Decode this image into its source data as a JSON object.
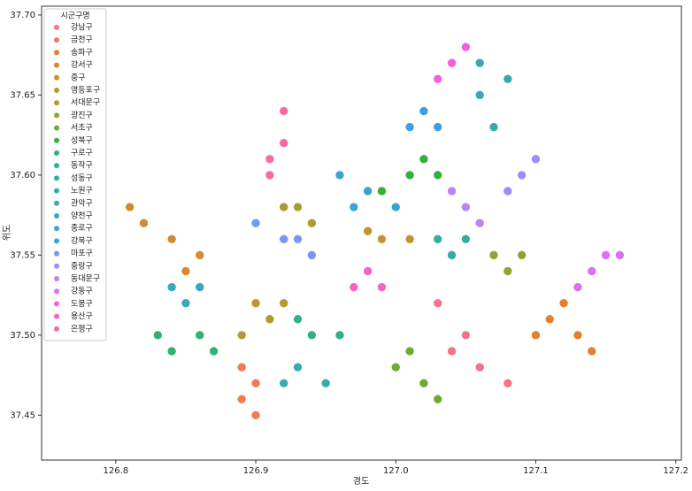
{
  "chart_data": {
    "type": "scatter",
    "x_label": "경도",
    "y_label": "위도",
    "legend_title": "시군구명",
    "legend": "upper left",
    "xlim": [
      126.747,
      127.204
    ],
    "ylim": [
      37.422,
      37.7055
    ],
    "xticks": [
      126.8,
      126.9,
      {
        "value": 127.0,
        "label": "127.0"
      },
      127.1,
      127.2
    ],
    "yticks": [
      37.45,
      {
        "value": 37.5,
        "label": "37.50"
      },
      37.55,
      {
        "value": 37.6,
        "label": "37.60"
      },
      37.65,
      {
        "value": 37.7,
        "label": "37.70"
      }
    ],
    "series": [
      {
        "name": "강남구",
        "color": "#f77189",
        "x": [
          127.03,
          127.05,
          127.06,
          127.08,
          127.04
        ],
        "y": [
          37.52,
          37.5,
          37.48,
          37.47,
          37.49
        ]
      },
      {
        "name": "금천구",
        "color": "#f47a56",
        "x": [
          126.9,
          126.89,
          126.9,
          126.89
        ],
        "y": [
          37.47,
          37.46,
          37.45,
          37.48
        ]
      },
      {
        "name": "송파구",
        "color": "#e3802f",
        "x": [
          127.11,
          127.13,
          127.14,
          127.1,
          127.12
        ],
        "y": [
          37.51,
          37.5,
          37.49,
          37.5,
          37.52
        ]
      },
      {
        "name": "강서구",
        "color": "#d48a32",
        "x": [
          126.82,
          126.84,
          126.85,
          126.81,
          126.86
        ],
        "y": [
          37.57,
          37.56,
          37.54,
          37.58,
          37.55
        ]
      },
      {
        "name": "중구",
        "color": "#c59233",
        "x": [
          126.99,
          127.01,
          126.98
        ],
        "y": [
          37.56,
          37.56,
          37.565
        ]
      },
      {
        "name": "영등포구",
        "color": "#b49a31",
        "x": [
          126.9,
          126.91,
          126.89,
          126.92
        ],
        "y": [
          37.52,
          37.51,
          37.5,
          37.52
        ]
      },
      {
        "name": "서대문구",
        "color": "#a39f31",
        "x": [
          126.93,
          126.94,
          126.92
        ],
        "y": [
          37.58,
          37.57,
          37.58
        ]
      },
      {
        "name": "광진구",
        "color": "#8ea631",
        "x": [
          127.08,
          127.09,
          127.07
        ],
        "y": [
          37.54,
          37.55,
          37.55
        ]
      },
      {
        "name": "서초구",
        "color": "#6aad32",
        "x": [
          127.01,
          127.02,
          127.0,
          127.03
        ],
        "y": [
          37.49,
          37.47,
          37.48,
          37.46
        ]
      },
      {
        "name": "성북구",
        "color": "#34b038",
        "x": [
          127.01,
          127.03,
          126.99,
          127.02
        ],
        "y": [
          37.6,
          37.6,
          37.59,
          37.61
        ]
      },
      {
        "name": "구로구",
        "color": "#33b074",
        "x": [
          126.84,
          126.86,
          126.87,
          126.83
        ],
        "y": [
          37.49,
          37.5,
          37.49,
          37.5
        ]
      },
      {
        "name": "동작구",
        "color": "#35ae8f",
        "x": [
          126.94,
          126.96,
          126.93
        ],
        "y": [
          37.5,
          37.5,
          37.51
        ]
      },
      {
        "name": "성동구",
        "color": "#36ad9c",
        "x": [
          127.04,
          127.03,
          127.05
        ],
        "y": [
          37.55,
          37.56,
          37.56
        ]
      },
      {
        "name": "노원구",
        "color": "#37aba9",
        "x": [
          127.06,
          127.07,
          127.08,
          127.06
        ],
        "y": [
          37.65,
          37.63,
          37.66,
          37.67
        ]
      },
      {
        "name": "관악구",
        "color": "#38a9b5",
        "x": [
          126.93,
          126.95,
          126.92
        ],
        "y": [
          37.48,
          37.47,
          37.47
        ]
      },
      {
        "name": "양천구",
        "color": "#39a7c2",
        "x": [
          126.85,
          126.86,
          126.84
        ],
        "y": [
          37.52,
          37.53,
          37.53
        ]
      },
      {
        "name": "종로구",
        "color": "#3ba3d0",
        "x": [
          126.98,
          126.97,
          127.0,
          126.96
        ],
        "y": [
          37.59,
          37.58,
          37.58,
          37.6
        ]
      },
      {
        "name": "강북구",
        "color": "#3e9fe3",
        "x": [
          127.02,
          127.01,
          127.03
        ],
        "y": [
          37.64,
          37.63,
          37.63
        ]
      },
      {
        "name": "마포구",
        "color": "#7a95f4",
        "x": [
          126.92,
          126.94,
          126.9,
          126.93
        ],
        "y": [
          37.56,
          37.55,
          37.57,
          37.56
        ]
      },
      {
        "name": "중랑구",
        "color": "#9d8df4",
        "x": [
          127.09,
          127.08,
          127.1
        ],
        "y": [
          37.6,
          37.59,
          37.61
        ]
      },
      {
        "name": "동대문구",
        "color": "#bb83f4",
        "x": [
          127.05,
          127.04,
          127.06
        ],
        "y": [
          37.58,
          37.59,
          37.57
        ]
      },
      {
        "name": "강동구",
        "color": "#dd6ff4",
        "x": [
          127.14,
          127.15,
          127.13,
          127.16
        ],
        "y": [
          37.54,
          37.55,
          37.53,
          37.55
        ]
      },
      {
        "name": "도봉구",
        "color": "#f45ee1",
        "x": [
          127.04,
          127.03,
          127.05
        ],
        "y": [
          37.67,
          37.66,
          37.68
        ]
      },
      {
        "name": "용산구",
        "color": "#f564c1",
        "x": [
          126.98,
          126.97,
          126.99
        ],
        "y": [
          37.54,
          37.53,
          37.53
        ]
      },
      {
        "name": "은평구",
        "color": "#f66aa6",
        "x": [
          126.92,
          126.91,
          126.92,
          126.91
        ],
        "y": [
          37.62,
          37.6,
          37.64,
          37.61
        ]
      }
    ]
  }
}
